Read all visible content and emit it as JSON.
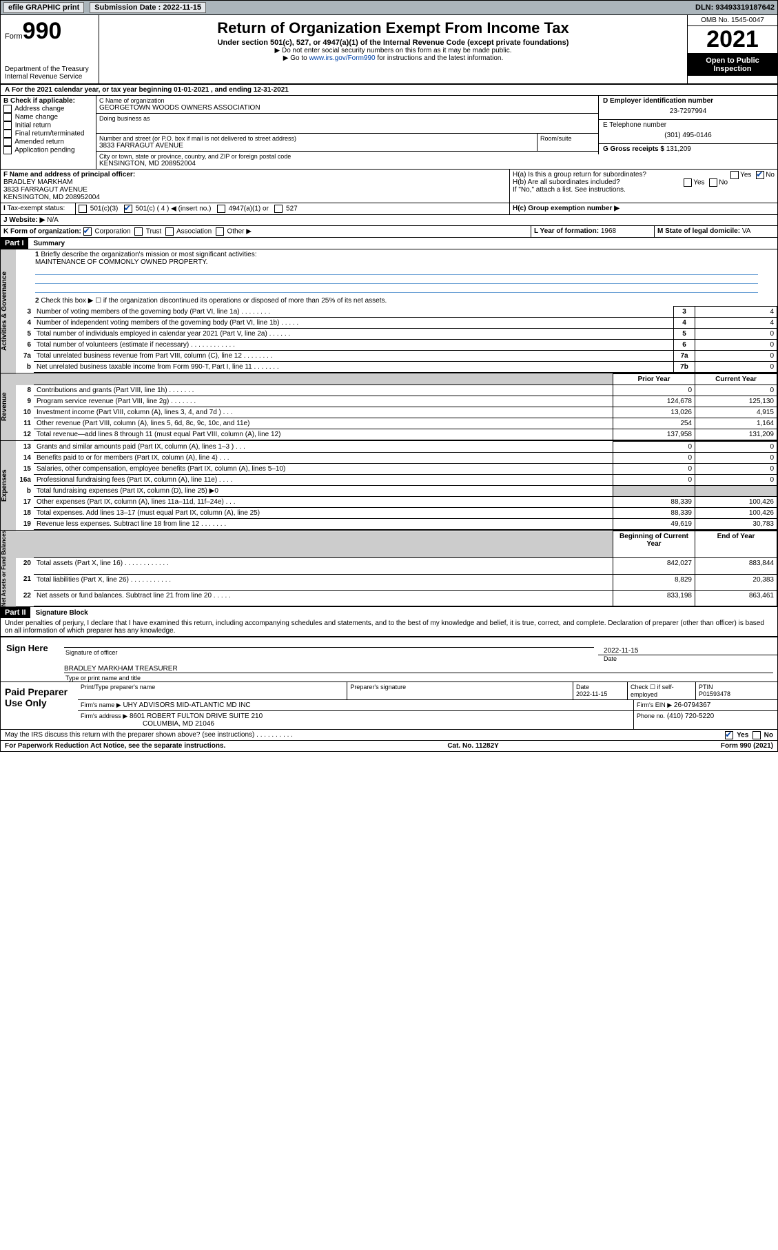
{
  "topbar": {
    "efile": "efile GRAPHIC print",
    "subdate_label": "Submission Date : 2022-11-15",
    "dln": "DLN: 93493319187642"
  },
  "header": {
    "form_prefix": "Form",
    "form_num": "990",
    "dept": "Department of the Treasury",
    "irs": "Internal Revenue Service",
    "title": "Return of Organization Exempt From Income Tax",
    "sub": "Under section 501(c), 527, or 4947(a)(1) of the Internal Revenue Code (except private foundations)",
    "note1": "▶ Do not enter social security numbers on this form as it may be made public.",
    "note2_pre": "▶ Go to ",
    "note2_link": "www.irs.gov/Form990",
    "note2_post": " for instructions and the latest information.",
    "omb": "OMB No. 1545-0047",
    "year": "2021",
    "open": "Open to Public Inspection"
  },
  "A": {
    "text": "For the 2021 calendar year, or tax year beginning 01-01-2021    , and ending 12-31-2021"
  },
  "B": {
    "lead": "B Check if applicable:",
    "opts": [
      "Address change",
      "Name change",
      "Initial return",
      "Final return/terminated",
      "Amended return",
      "Application pending"
    ]
  },
  "C": {
    "name_lbl": "C Name of organization",
    "name": "GEORGETOWN WOODS OWNERS ASSOCIATION",
    "dba_lbl": "Doing business as",
    "dba": "",
    "street_lbl": "Number and street (or P.O. box if mail is not delivered to street address)",
    "room_lbl": "Room/suite",
    "street": "3833 FARRAGUT AVENUE",
    "city_lbl": "City or town, state or province, country, and ZIP or foreign postal code",
    "city": "KENSINGTON, MD  208952004"
  },
  "D": {
    "lbl": "D Employer identification number",
    "val": "23-7297994"
  },
  "E": {
    "lbl": "E Telephone number",
    "val": "(301) 495-0146"
  },
  "G": {
    "lbl": "G Gross receipts $",
    "val": "131,209"
  },
  "F": {
    "lbl": "F  Name and address of principal officer:",
    "name": "BRADLEY MARKHAM",
    "addr1": "3833 FARRAGUT AVENUE",
    "addr2": "KENSINGTON, MD  208952004"
  },
  "H": {
    "a": "H(a)  Is this a group return for subordinates?",
    "b": "H(b)  Are all subordinates included?",
    "c": "H(c)  Group exemption number ▶",
    "note": "If \"No,\" attach a list. See instructions.",
    "yes": "Yes",
    "no": "No"
  },
  "I": {
    "lbl": "Tax-exempt status:",
    "o1": "501(c)(3)",
    "o2": "501(c) ( 4 ) ◀ (insert no.)",
    "o3": "4947(a)(1) or",
    "o4": "527"
  },
  "J": {
    "lbl": "Website: ▶",
    "val": "N/A"
  },
  "K": {
    "lbl": "K Form of organization:",
    "o1": "Corporation",
    "o2": "Trust",
    "o3": "Association",
    "o4": "Other ▶"
  },
  "L": {
    "lbl": "L Year of formation:",
    "val": "1968"
  },
  "M": {
    "lbl": "M State of legal domicile:",
    "val": "VA"
  },
  "part1": {
    "bar": "Part I",
    "title": "Summary",
    "q1": "Briefly describe the organization's mission or most significant activities:",
    "q1v": "MAINTENANCE OF COMMONLY OWNED PROPERTY.",
    "q2": "Check this box ▶ ☐  if the organization discontinued its operations or disposed of more than 25% of its net assets.",
    "vertA": "Activities & Governance",
    "vertR": "Revenue",
    "vertE": "Expenses",
    "vertN": "Net Assets or Fund Balances",
    "hdr_prior": "Prior Year",
    "hdr_curr": "Current Year",
    "hdr_beg": "Beginning of Current Year",
    "hdr_end": "End of Year",
    "rows_gov": [
      {
        "n": "3",
        "t": "Number of voting members of the governing body (Part VI, line 1a)   .    .    .    .    .    .    .    .",
        "ln": "3",
        "v": "4"
      },
      {
        "n": "4",
        "t": "Number of independent voting members of the governing body (Part VI, line 1b)   .    .    .    .    .",
        "ln": "4",
        "v": "4"
      },
      {
        "n": "5",
        "t": "Total number of individuals employed in calendar year 2021 (Part V, line 2a)   .    .    .    .    .    .",
        "ln": "5",
        "v": "0"
      },
      {
        "n": "6",
        "t": "Total number of volunteers (estimate if necessary)   .    .    .    .    .    .    .    .    .    .    .    .",
        "ln": "6",
        "v": "0"
      },
      {
        "n": "7a",
        "t": "Total unrelated business revenue from Part VIII, column (C), line 12   .    .    .    .    .    .    .    .",
        "ln": "7a",
        "v": "0"
      },
      {
        "n": "b",
        "t": "Net unrelated business taxable income from Form 990-T, Part I, line 11   .    .    .    .    .    .    .",
        "ln": "7b",
        "v": "0"
      }
    ],
    "rows_rev": [
      {
        "n": "8",
        "t": "Contributions and grants (Part VIII, line 1h)   .    .    .    .    .    .    .",
        "p": "0",
        "c": "0"
      },
      {
        "n": "9",
        "t": "Program service revenue (Part VIII, line 2g)   .    .    .    .    .    .    .",
        "p": "124,678",
        "c": "125,130"
      },
      {
        "n": "10",
        "t": "Investment income (Part VIII, column (A), lines 3, 4, and 7d )   .    .    .",
        "p": "13,026",
        "c": "4,915"
      },
      {
        "n": "11",
        "t": "Other revenue (Part VIII, column (A), lines 5, 6d, 8c, 9c, 10c, and 11e)",
        "p": "254",
        "c": "1,164"
      },
      {
        "n": "12",
        "t": "Total revenue—add lines 8 through 11 (must equal Part VIII, column (A), line 12)",
        "p": "137,958",
        "c": "131,209"
      }
    ],
    "rows_exp": [
      {
        "n": "13",
        "t": "Grants and similar amounts paid (Part IX, column (A), lines 1–3 )   .    .    .",
        "p": "0",
        "c": "0"
      },
      {
        "n": "14",
        "t": "Benefits paid to or for members (Part IX, column (A), line 4)   .    .    .",
        "p": "0",
        "c": "0"
      },
      {
        "n": "15",
        "t": "Salaries, other compensation, employee benefits (Part IX, column (A), lines 5–10)",
        "p": "0",
        "c": "0"
      },
      {
        "n": "16a",
        "t": "Professional fundraising fees (Part IX, column (A), line 11e)   .    .    .    .",
        "p": "0",
        "c": "0"
      },
      {
        "n": "b",
        "t": "Total fundraising expenses (Part IX, column (D), line 25) ▶0",
        "grey": true
      },
      {
        "n": "17",
        "t": "Other expenses (Part IX, column (A), lines 11a–11d, 11f–24e)   .    .    .",
        "p": "88,339",
        "c": "100,426"
      },
      {
        "n": "18",
        "t": "Total expenses. Add lines 13–17 (must equal Part IX, column (A), line 25)",
        "p": "88,339",
        "c": "100,426"
      },
      {
        "n": "19",
        "t": "Revenue less expenses. Subtract line 18 from line 12   .    .    .    .    .    .    .",
        "p": "49,619",
        "c": "30,783"
      }
    ],
    "rows_net": [
      {
        "n": "20",
        "t": "Total assets (Part X, line 16)   .    .    .    .    .    .    .    .    .    .    .    .",
        "p": "842,027",
        "c": "883,844"
      },
      {
        "n": "21",
        "t": "Total liabilities (Part X, line 26)   .    .    .    .    .    .    .    .    .    .    .",
        "p": "8,829",
        "c": "20,383"
      },
      {
        "n": "22",
        "t": "Net assets or fund balances. Subtract line 21 from line 20   .    .    .    .    .",
        "p": "833,198",
        "c": "863,461"
      }
    ]
  },
  "part2": {
    "bar": "Part II",
    "title": "Signature Block",
    "decl": "Under penalties of perjury, I declare that I have examined this return, including accompanying schedules and statements, and to the best of my knowledge and belief, it is true, correct, and complete. Declaration of preparer (other than officer) is based on all information of which preparer has any knowledge."
  },
  "sign": {
    "here": "Sign Here",
    "sig_lbl": "Signature of officer",
    "date_lbl": "Date",
    "date": "2022-11-15",
    "name": "BRADLEY MARKHAM  TREASURER",
    "name_lbl": "Type or print name and title"
  },
  "paid": {
    "title": "Paid Preparer Use Only",
    "h1": "Print/Type preparer's name",
    "h2": "Preparer's signature",
    "h3": "Date",
    "h3v": "2022-11-15",
    "h4": "Check ☐ if self-employed",
    "h5": "PTIN",
    "h5v": "P01593478",
    "firm_lbl": "Firm's name    ▶",
    "firm": "UHY ADVISORS MID-ATLANTIC MD INC",
    "ein_lbl": "Firm's EIN ▶",
    "ein": "26-0794367",
    "addr_lbl": "Firm's address ▶",
    "addr1": "8601 ROBERT FULTON DRIVE SUITE 210",
    "addr2": "COLUMBIA, MD  21046",
    "phone_lbl": "Phone no.",
    "phone": "(410) 720-5220",
    "discuss": "May the IRS discuss this return with the preparer shown above? (see instructions)   .    .    .    .    .    .    .    .    .    .",
    "yes": "Yes",
    "no": "No"
  },
  "footer": {
    "l": "For Paperwork Reduction Act Notice, see the separate instructions.",
    "m": "Cat. No. 11282Y",
    "r": "Form 990 (2021)"
  }
}
